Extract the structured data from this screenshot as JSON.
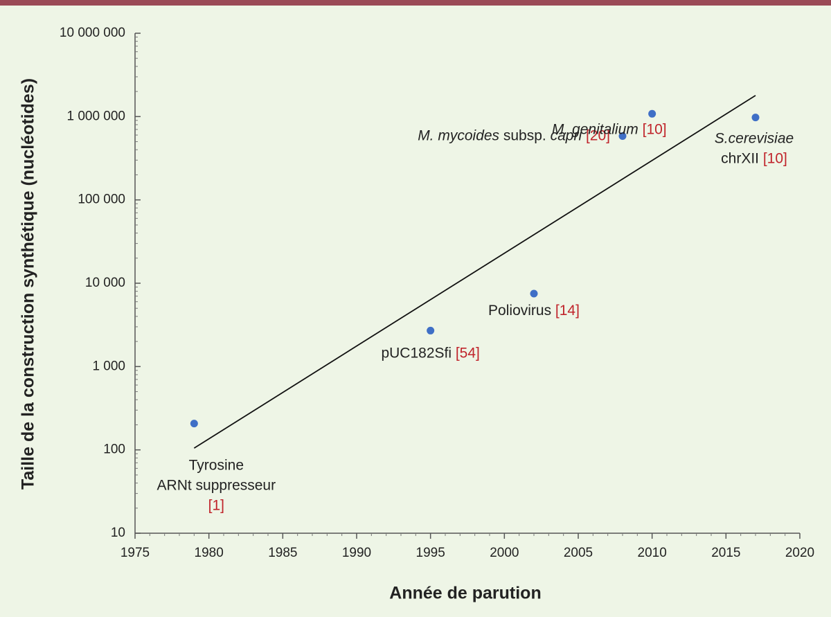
{
  "chart_data": {
    "type": "scatter",
    "x_label": "Année de parution",
    "y_label": "Taille de la construction synthétique (nucléotides)",
    "x": [
      1979,
      1995,
      2002,
      2008,
      2010,
      2017
    ],
    "values": [
      207,
      2700,
      7500,
      583000,
      1080000,
      976000
    ],
    "color": "#3f6fc6",
    "ref_color": "#c0242b",
    "labels": [
      [
        [
          {
            "text": "Tyrosine"
          }
        ],
        [
          {
            "text": "ARNt suppresseur"
          }
        ],
        [
          {
            "text": "[1]",
            "ref": true
          }
        ]
      ],
      [
        [
          {
            "text": "pUC182Sfi "
          },
          {
            "text": "[54]",
            "ref": true
          }
        ]
      ],
      [
        [
          {
            "text": "Poliovirus "
          },
          {
            "text": "[14]",
            "ref": true
          }
        ]
      ],
      [
        [
          {
            "text": "M. mycoides",
            "italic": true
          },
          {
            "text": " subsp. "
          },
          {
            "text": "capri",
            "italic": true
          },
          {
            "text": " [20]",
            "ref": true
          }
        ]
      ],
      [
        [
          {
            "text": "M. genitalium",
            "italic": true
          },
          {
            "text": " [10]",
            "ref": true
          }
        ]
      ],
      [
        [
          {
            "text": "S.cerevisiae",
            "italic": true
          }
        ],
        [
          {
            "text": "chrXII "
          },
          {
            "text": "[10]",
            "ref": true
          }
        ]
      ]
    ],
    "trend": {
      "x": [
        1979,
        2017
      ],
      "values": [
        105,
        1790000
      ],
      "color": "#111111"
    },
    "xlim": [
      1975,
      2020
    ],
    "xticks": [
      1975,
      1980,
      1985,
      1990,
      1995,
      2000,
      2005,
      2010,
      2015,
      2020
    ],
    "ylim": [
      10,
      10000000
    ],
    "log_y": true,
    "yticks": [
      10,
      100,
      {
        "value": 1000,
        "label": "1 000"
      },
      {
        "value": 10000,
        "label": "10 000"
      },
      {
        "value": 100000,
        "label": "100 000"
      },
      {
        "value": 1000000,
        "label": "1 000 000"
      },
      {
        "value": 10000000,
        "label": "10 000 000"
      }
    ]
  }
}
